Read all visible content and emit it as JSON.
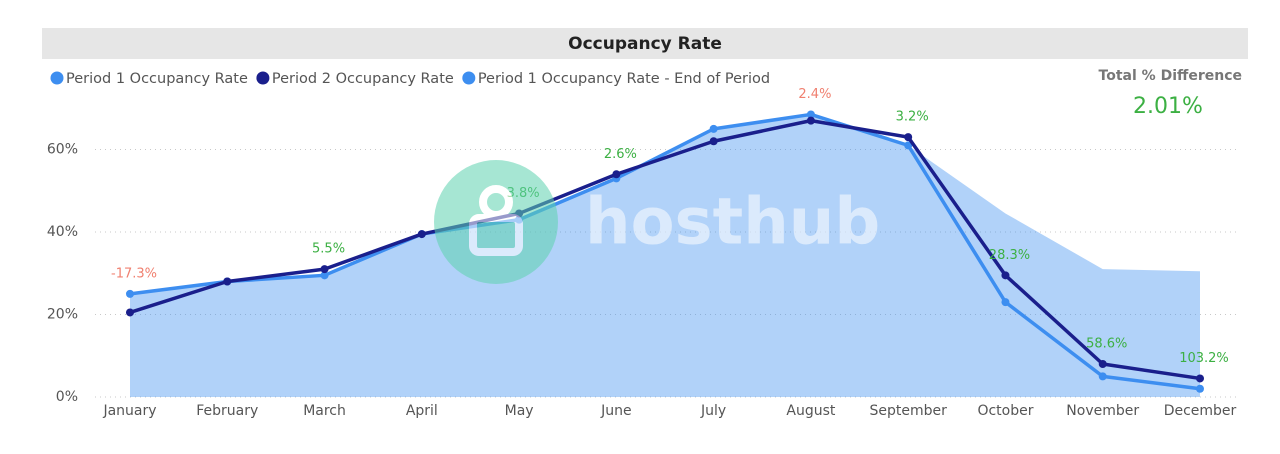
{
  "chart_data": {
    "type": "line",
    "title": "Occupancy Rate",
    "categories": [
      "January",
      "February",
      "March",
      "April",
      "May",
      "June",
      "July",
      "August",
      "September",
      "October",
      "November",
      "December"
    ],
    "series": [
      {
        "name": "Period 1 Occupancy Rate",
        "color": "#3d8ef0",
        "style": "line",
        "values": [
          25,
          28,
          29.5,
          39.5,
          43,
          53,
          65,
          68.5,
          61,
          23,
          5,
          2
        ]
      },
      {
        "name": "Period 2 Occupancy Rate",
        "color": "#1a1f8c",
        "style": "line",
        "values": [
          20.5,
          28,
          31,
          39.5,
          44.5,
          54,
          62,
          67,
          63,
          29.5,
          8,
          4.5
        ]
      },
      {
        "name": "Period 1 Occupancy Rate - End of Period",
        "color": "#3d8ef0",
        "style": "area",
        "values": [
          25,
          28,
          29.5,
          39.5,
          43,
          53,
          65,
          68.5,
          61,
          44.5,
          31,
          30.5
        ]
      }
    ],
    "difference_labels": [
      "-17.3%",
      null,
      "5.5%",
      null,
      "3.8%",
      "2.6%",
      null,
      "2.4%",
      "3.2%",
      "28.3%",
      "58.6%",
      "103.2%"
    ],
    "difference_label_colors": [
      "#f08070",
      null,
      "#3cb043",
      null,
      "#3cb043",
      "#3cb043",
      null,
      "#f08070",
      "#3cb043",
      "#3cb043",
      "#3cb043",
      "#3cb043"
    ],
    "ylim": [
      0,
      72
    ],
    "yticks": [
      {
        "value": 0,
        "label": "0%"
      },
      {
        "value": 20,
        "label": "20%"
      },
      {
        "value": 40,
        "label": "40%"
      },
      {
        "value": 60,
        "label": "60%"
      }
    ],
    "grid": true,
    "kpi": {
      "title": "Total % Difference",
      "value_label": "2.01%"
    },
    "watermark": "hosthub"
  }
}
